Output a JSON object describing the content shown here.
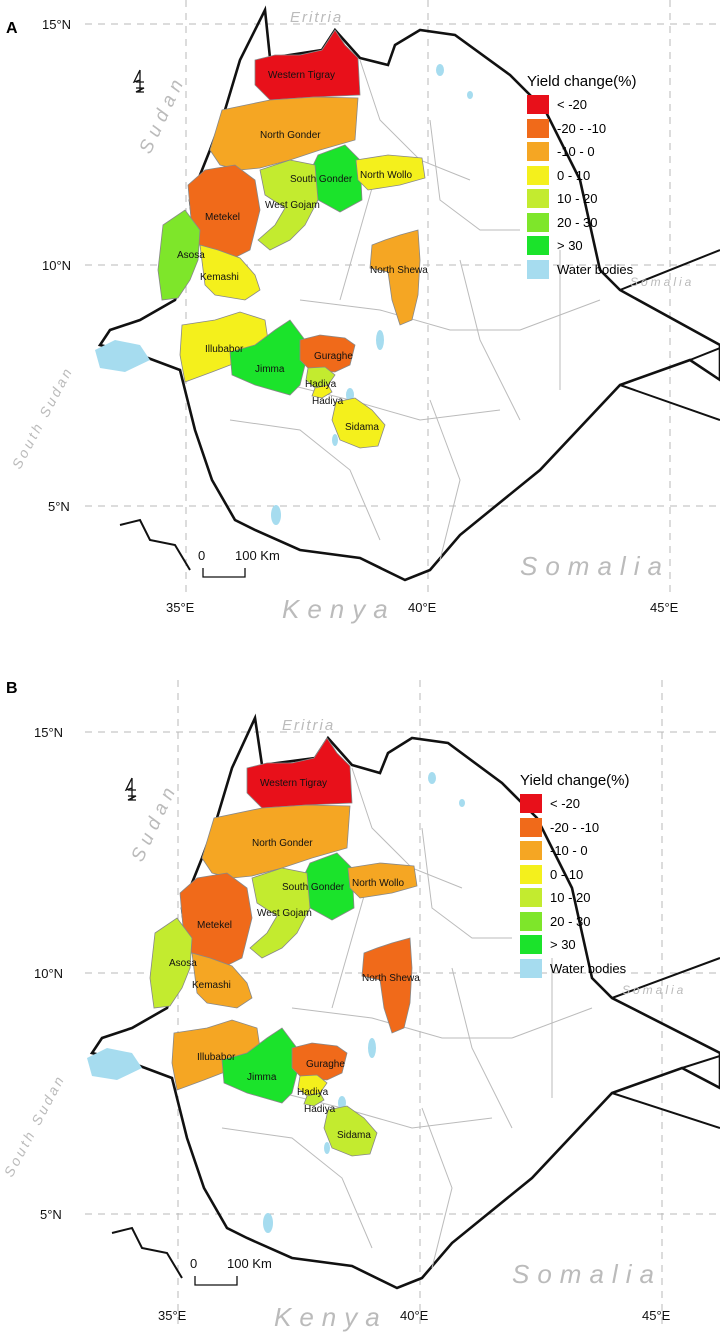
{
  "legend": {
    "title": "Yield change(%)",
    "classes": [
      {
        "label": "< -20",
        "color": "#e8101a"
      },
      {
        "label": "-20 - -10",
        "color": "#f06a1a"
      },
      {
        "label": "-10 - 0",
        "color": "#f5a623"
      },
      {
        "label": "0 - 10",
        "color": "#f4f01c"
      },
      {
        "label": "10 - 20",
        "color": "#c3eb2f"
      },
      {
        "label": "20 - 30",
        "color": "#7ee62a"
      },
      {
        "label": "> 30",
        "color": "#1be32b"
      },
      {
        "label": "Water bodies",
        "color": "#a6dcef"
      }
    ]
  },
  "axes": {
    "lat_labels": [
      "15°N",
      "10°N",
      "5°N"
    ],
    "lon_labels": [
      "35°E",
      "40°E",
      "45°E"
    ]
  },
  "countries": {
    "eritria": "Eritria",
    "sudan": "Sudan",
    "south_sudan": "South Sudan",
    "somalia_small": "Somalia",
    "somalia_large": "Somalia",
    "kenya": "Kenya"
  },
  "scale_bar": {
    "start": "0",
    "end": "100 Km"
  },
  "panels": [
    {
      "letter": "A",
      "zones": [
        {
          "name": "Western Tigray",
          "class": "< -20"
        },
        {
          "name": "North Gonder",
          "class": "-10 - 0"
        },
        {
          "name": "South Gonder",
          "class": "> 30"
        },
        {
          "name": "North Wollo",
          "class": "0 - 10"
        },
        {
          "name": "Metekel",
          "class": "-20 - -10"
        },
        {
          "name": "West Gojam",
          "class": "10 - 20"
        },
        {
          "name": "Asosa",
          "class": "20 - 30"
        },
        {
          "name": "Kemashi",
          "class": "0 - 10"
        },
        {
          "name": "North Shewa",
          "class": "-10 - 0"
        },
        {
          "name": "Illubabor",
          "class": "0 - 10"
        },
        {
          "name": "Jimma",
          "class": "> 30"
        },
        {
          "name": "Guraghe",
          "class": "-20 - -10"
        },
        {
          "name": "Hadiya",
          "class": "10 - 20"
        },
        {
          "name": "Hadiya",
          "class": "0 - 10"
        },
        {
          "name": "Sidama",
          "class": "0 - 10"
        }
      ]
    },
    {
      "letter": "B",
      "zones": [
        {
          "name": "Western Tigray",
          "class": "< -20"
        },
        {
          "name": "North Gonder",
          "class": "-10 - 0"
        },
        {
          "name": "South Gonder",
          "class": "> 30"
        },
        {
          "name": "North Wollo",
          "class": "-10 - 0"
        },
        {
          "name": "Metekel",
          "class": "-20 - -10"
        },
        {
          "name": "West Gojam",
          "class": "10 - 20"
        },
        {
          "name": "Asosa",
          "class": "10 - 20"
        },
        {
          "name": "Kemashi",
          "class": "-10 - 0"
        },
        {
          "name": "North Shewa",
          "class": "-20 - -10"
        },
        {
          "name": "Illubabor",
          "class": "-10 - 0"
        },
        {
          "name": "Jimma",
          "class": "> 30"
        },
        {
          "name": "Guraghe",
          "class": "-20 - -10"
        },
        {
          "name": "Hadiya",
          "class": "0 - 10"
        },
        {
          "name": "Hadiya",
          "class": "10 - 20"
        },
        {
          "name": "Sidama",
          "class": "10 - 20"
        }
      ]
    }
  ]
}
